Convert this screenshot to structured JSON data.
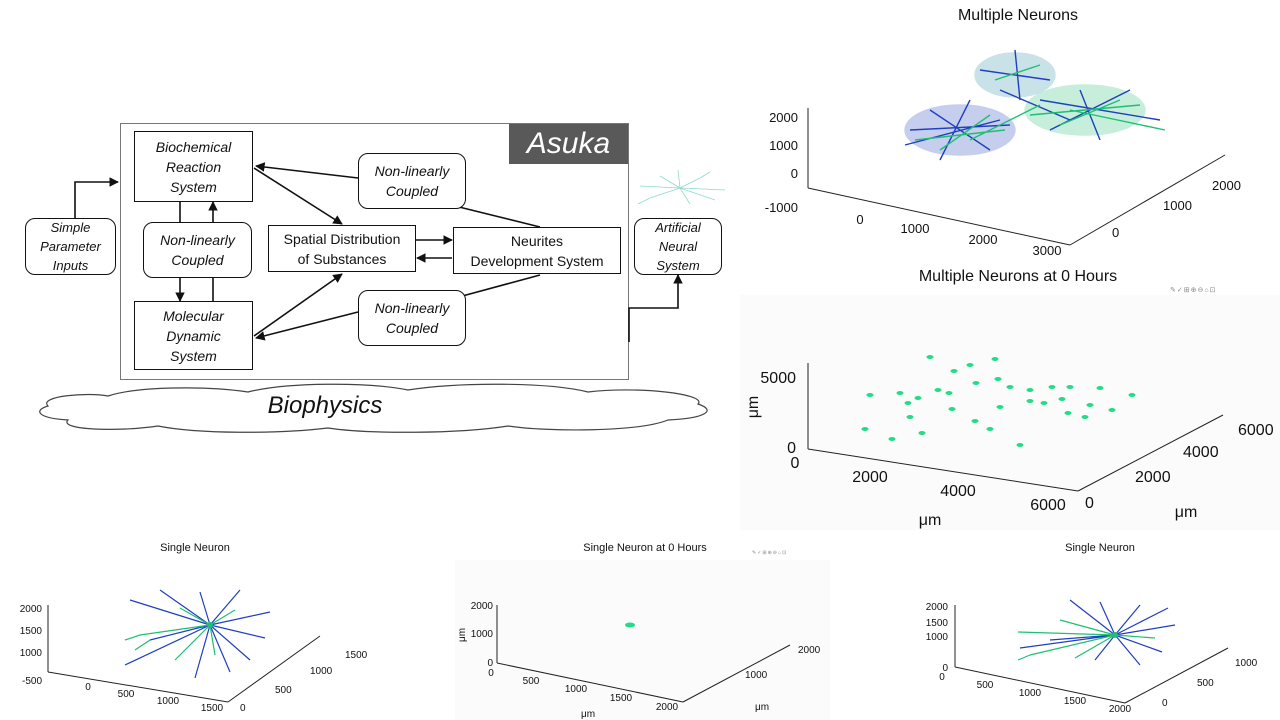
{
  "diagram": {
    "brand": "Asuka",
    "foundation": "Biophysics",
    "nodes": {
      "biochemical": "Biochemical\nReaction\nSystem",
      "coupled_left": "Non-linearly\nCoupled",
      "molecular": "Molecular\nDynamic\nSystem",
      "coupled_top": "Non-linearly\nCoupled",
      "coupled_bottom": "Non-linearly\nCoupled",
      "spatial": "Spatial Distribution\nof Substances",
      "neurites": "Neurites\nDevelopment System",
      "inputs": "Simple\nParameter\nInputs",
      "ann": "Artificial\nNeural\nSystem"
    }
  },
  "plots": {
    "multiple_neurons": {
      "title": "Multiple Neurons",
      "z_ticks": [
        "2000",
        "1000",
        "0",
        "-1000"
      ],
      "x_ticks": [
        "0",
        "1000",
        "2000",
        "3000"
      ],
      "y_ticks": [
        "0",
        "1000",
        "2000"
      ]
    },
    "multiple_neurons_0h": {
      "title": "Multiple Neurons at 0 Hours",
      "z_ticks": [
        "5000",
        "0"
      ],
      "x_ticks": [
        "0",
        "2000",
        "4000",
        "6000"
      ],
      "y_ticks": [
        "0",
        "2000",
        "4000",
        "6000"
      ],
      "z_label": "μm",
      "x_label": "μm",
      "y_label": "μm"
    },
    "single_neuron": {
      "title": "Single Neuron",
      "z_ticks": [
        "2000",
        "1500",
        "1000",
        "-500"
      ],
      "x_ticks": [
        "0",
        "500",
        "1000",
        "1500"
      ],
      "y_ticks": [
        "0",
        "500",
        "1000",
        "1500"
      ]
    },
    "single_neuron_0h": {
      "title": "Single Neuron at 0 Hours",
      "z_ticks": [
        "2000",
        "1000",
        "0"
      ],
      "x_ticks": [
        "0",
        "500",
        "1000",
        "1500",
        "2000"
      ],
      "y_ticks": [
        "1000",
        "2000"
      ],
      "z_label": "μm",
      "x_label": "μm",
      "y_label": "μm"
    },
    "single_neuron_right": {
      "title": "Single Neuron",
      "z_ticks": [
        "2000",
        "1500",
        "1000",
        "0"
      ],
      "x_ticks": [
        "0",
        "500",
        "1000",
        "1500",
        "2000"
      ],
      "y_ticks": [
        "0",
        "500",
        "1000"
      ]
    }
  },
  "colors": {
    "neuron_green": "#1fbf73",
    "neuron_blue": "#1f3fbf",
    "neuron_teal": "#2a8fa8",
    "spot_green": "#22dd88",
    "asuka_bg": "#595959"
  }
}
